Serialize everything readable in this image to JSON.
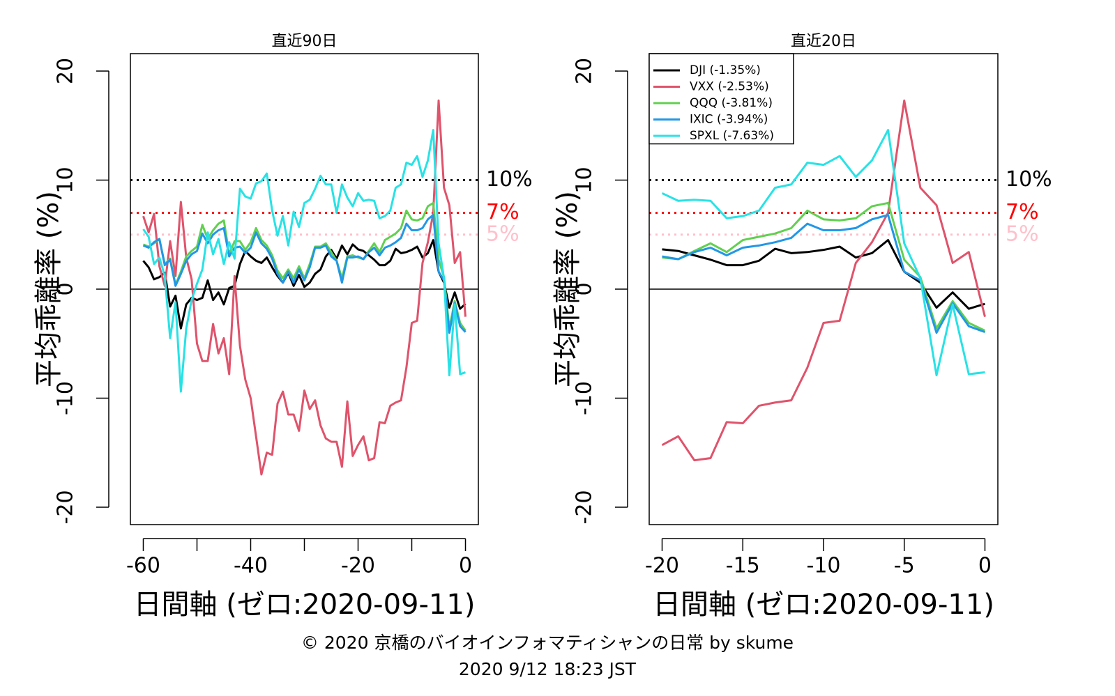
{
  "chart_data": [
    {
      "type": "line",
      "title": "直近90日",
      "ylabel": "平均乖離率 (%)",
      "xlabel": "日間軸 (ゼロ:2020-09-11)",
      "x": [
        -60,
        -59,
        -58,
        -57,
        -56,
        -55,
        -54,
        -53,
        -52,
        -51,
        -50,
        -49,
        -48,
        -47,
        -46,
        -45,
        -44,
        -43,
        -42,
        -41,
        -40,
        -39,
        -38,
        -37,
        -36,
        -35,
        -34,
        -33,
        -32,
        -31,
        -30,
        -29,
        -28,
        -27,
        -26,
        -25,
        -24,
        -23,
        -22,
        -21,
        -20,
        -19,
        -18,
        -17,
        -16,
        -15,
        -14,
        -13,
        -12,
        -11,
        -10,
        -9,
        -8,
        -7,
        -6,
        -5,
        -4,
        -3,
        -2,
        -1,
        0
      ],
      "xlim": [
        -62.4,
        2.4
      ],
      "xticks": [
        -60,
        -40,
        -20,
        0
      ],
      "xminor_ticks": [
        -50,
        -30,
        -10
      ],
      "ylim": [
        -21.6,
        21.6
      ],
      "yticks": [
        -20,
        -10,
        0,
        10,
        20
      ],
      "hlines": [
        {
          "value": 0,
          "color": "#000000",
          "style": "solid"
        },
        {
          "value": 10,
          "label": "10%",
          "color": "#000000",
          "style": "dotted"
        },
        {
          "value": 7,
          "label": "7%",
          "color": "#ff0000",
          "style": "dotted"
        },
        {
          "value": 5,
          "label": "5%",
          "color": "#ffc0cb",
          "style": "dotted"
        }
      ],
      "series": [
        {
          "color": "#000000",
          "values": [
            2.6,
            2.0,
            0.9,
            1.1,
            1.5,
            -1.6,
            -0.6,
            -3.6,
            -1.4,
            -0.8,
            -1.0,
            -0.8,
            0.8,
            -1.0,
            -0.3,
            -1.4,
            0.1,
            0.3,
            2.3,
            3.5,
            3.0,
            2.6,
            2.4,
            2.9,
            2.0,
            1.2,
            0.6,
            1.5,
            0.3,
            1.3,
            0.2,
            0.6,
            1.4,
            1.8,
            3.0,
            3.6,
            2.8,
            4.0,
            3.2,
            4.1,
            3.65,
            3.5,
            3.1,
            2.7,
            2.2,
            2.2,
            2.6,
            3.7,
            3.3,
            3.4,
            3.6,
            3.9,
            2.9,
            3.3,
            4.5,
            1.6,
            0.6,
            -1.7,
            -0.3,
            -1.8,
            -1.35
          ]
        },
        {
          "color": "#DF536B",
          "values": [
            6.7,
            5.2,
            6.9,
            2.1,
            0.3,
            4.4,
            1.2,
            8.0,
            2.9,
            0.9,
            -5.0,
            -6.6,
            -6.6,
            -3.2,
            -5.9,
            -4.5,
            -7.8,
            1.2,
            -5.2,
            -8.3,
            -10.0,
            -13.5,
            -17.0,
            -15.0,
            -15.2,
            -10.5,
            -9.4,
            -11.5,
            -11.5,
            -13.0,
            -9.3,
            -11.0,
            -10.2,
            -12.5,
            -13.7,
            -14.0,
            -14.0,
            -16.3,
            -10.3,
            -15.3,
            -14.3,
            -13.5,
            -15.7,
            -15.5,
            -12.2,
            -12.3,
            -10.7,
            -10.4,
            -10.2,
            -7.2,
            -3.1,
            -2.9,
            2.4,
            4.3,
            7.0,
            17.3,
            9.3,
            7.7,
            2.4,
            3.4,
            -2.53
          ]
        },
        {
          "color": "#61D04F",
          "values": [
            4.1,
            3.9,
            4.2,
            4.6,
            2.3,
            2.8,
            0.4,
            1.6,
            3.0,
            3.5,
            3.9,
            5.9,
            4.6,
            5.4,
            6.0,
            6.3,
            3.2,
            4.4,
            4.4,
            3.6,
            4.3,
            5.6,
            4.5,
            4.0,
            3.1,
            1.7,
            1.0,
            1.8,
            1.0,
            2.1,
            1.0,
            2.3,
            3.9,
            3.9,
            4.2,
            3.4,
            2.6,
            1.0,
            3.0,
            3.1,
            2.9,
            2.75,
            3.5,
            4.2,
            3.4,
            4.5,
            4.8,
            5.1,
            5.6,
            7.2,
            6.4,
            6.3,
            6.5,
            7.6,
            7.9,
            2.7,
            1.1,
            -3.6,
            -1.1,
            -3.1,
            -3.81
          ]
        },
        {
          "color": "#2297E6",
          "values": [
            4.0,
            3.8,
            4.3,
            4.6,
            2.2,
            2.7,
            0.3,
            1.4,
            2.6,
            3.2,
            3.5,
            5.1,
            4.2,
            5.0,
            5.4,
            5.6,
            3.0,
            3.8,
            3.9,
            3.3,
            3.8,
            5.2,
            4.2,
            3.7,
            2.8,
            1.4,
            0.6,
            1.6,
            0.6,
            1.8,
            0.8,
            2.0,
            3.8,
            3.8,
            4.0,
            3.0,
            2.6,
            0.6,
            2.9,
            2.9,
            3.0,
            2.75,
            3.4,
            3.8,
            3.1,
            3.8,
            4.0,
            4.3,
            4.7,
            6.0,
            5.4,
            5.4,
            5.6,
            6.4,
            6.8,
            1.6,
            0.8,
            -4.0,
            -1.3,
            -3.4,
            -3.94
          ]
        },
        {
          "color": "#28E2E5",
          "values": [
            5.5,
            4.8,
            2.3,
            2.9,
            1.2,
            -4.5,
            -1.2,
            -9.4,
            -3.6,
            -1.0,
            0.5,
            1.8,
            5.2,
            3.2,
            4.6,
            2.3,
            4.3,
            2.8,
            9.2,
            8.5,
            8.3,
            9.7,
            9.9,
            10.6,
            7.2,
            4.9,
            6.7,
            4.0,
            7.1,
            5.7,
            7.9,
            8.2,
            9.2,
            10.4,
            9.6,
            9.6,
            7.0,
            9.6,
            8.4,
            7.6,
            8.8,
            8.1,
            8.2,
            8.1,
            6.5,
            6.7,
            7.2,
            9.3,
            9.6,
            11.6,
            11.4,
            12.2,
            10.3,
            11.8,
            14.6,
            4.2,
            1.0,
            -7.9,
            -1.4,
            -7.8,
            -7.63
          ]
        }
      ]
    },
    {
      "type": "line",
      "title": "直近20日",
      "ylabel": "平均乖離率 (%)",
      "xlabel": "日間軸 (ゼロ:2020-09-11)",
      "x": [
        -20,
        -19,
        -18,
        -17,
        -16,
        -15,
        -14,
        -13,
        -12,
        -11,
        -10,
        -9,
        -8,
        -7,
        -6,
        -5,
        -4,
        -3,
        -2,
        -1,
        0
      ],
      "xlim": [
        -20.8,
        0.8
      ],
      "xticks": [
        -20,
        -15,
        -10,
        -5,
        0
      ],
      "ylim": [
        -21.6,
        21.6
      ],
      "yticks": [
        -20,
        -10,
        0,
        10,
        20
      ],
      "legend": "topleft",
      "hlines": [
        {
          "value": 0,
          "color": "#000000",
          "style": "solid"
        },
        {
          "value": 10,
          "label": "10%",
          "color": "#000000",
          "style": "dotted"
        },
        {
          "value": 7,
          "label": "7%",
          "color": "#ff0000",
          "style": "dotted"
        },
        {
          "value": 5,
          "label": "5%",
          "color": "#ffc0cb",
          "style": "dotted"
        }
      ],
      "series": [
        {
          "name": "DJI (-1.35%)",
          "color": "#000000",
          "values": [
            3.65,
            3.5,
            3.1,
            2.7,
            2.2,
            2.2,
            2.6,
            3.7,
            3.3,
            3.4,
            3.6,
            3.9,
            2.9,
            3.3,
            4.5,
            1.6,
            0.6,
            -1.7,
            -0.3,
            -1.8,
            -1.35
          ]
        },
        {
          "name": "VXX (-2.53%)",
          "color": "#DF536B",
          "values": [
            -14.3,
            -13.5,
            -15.7,
            -15.5,
            -12.2,
            -12.3,
            -10.7,
            -10.4,
            -10.2,
            -7.2,
            -3.1,
            -2.9,
            2.4,
            4.3,
            7.0,
            17.3,
            9.3,
            7.7,
            2.4,
            3.4,
            -2.53
          ]
        },
        {
          "name": "QQQ (-3.81%)",
          "color": "#61D04F",
          "values": [
            2.9,
            2.75,
            3.5,
            4.2,
            3.4,
            4.5,
            4.8,
            5.1,
            5.6,
            7.2,
            6.4,
            6.3,
            6.5,
            7.6,
            7.9,
            2.7,
            1.1,
            -3.6,
            -1.1,
            -3.1,
            -3.81
          ]
        },
        {
          "name": "IXIC (-3.94%)",
          "color": "#2297E6",
          "values": [
            3.0,
            2.75,
            3.4,
            3.8,
            3.1,
            3.8,
            4.0,
            4.3,
            4.7,
            6.0,
            5.4,
            5.4,
            5.6,
            6.4,
            6.8,
            1.6,
            0.8,
            -4.0,
            -1.3,
            -3.4,
            -3.94
          ]
        },
        {
          "name": "SPXL (-7.63%)",
          "color": "#28E2E5",
          "values": [
            8.8,
            8.1,
            8.2,
            8.1,
            6.5,
            6.7,
            7.2,
            9.3,
            9.6,
            11.6,
            11.4,
            12.2,
            10.3,
            11.8,
            14.6,
            4.2,
            1.0,
            -7.9,
            -1.4,
            -7.8,
            -7.63
          ]
        }
      ]
    }
  ],
  "footer": {
    "copyright": "© 2020 京橋のバイオインフォマティシャンの日常 by skume",
    "timestamp": "2020 9/12 18:23 JST"
  }
}
